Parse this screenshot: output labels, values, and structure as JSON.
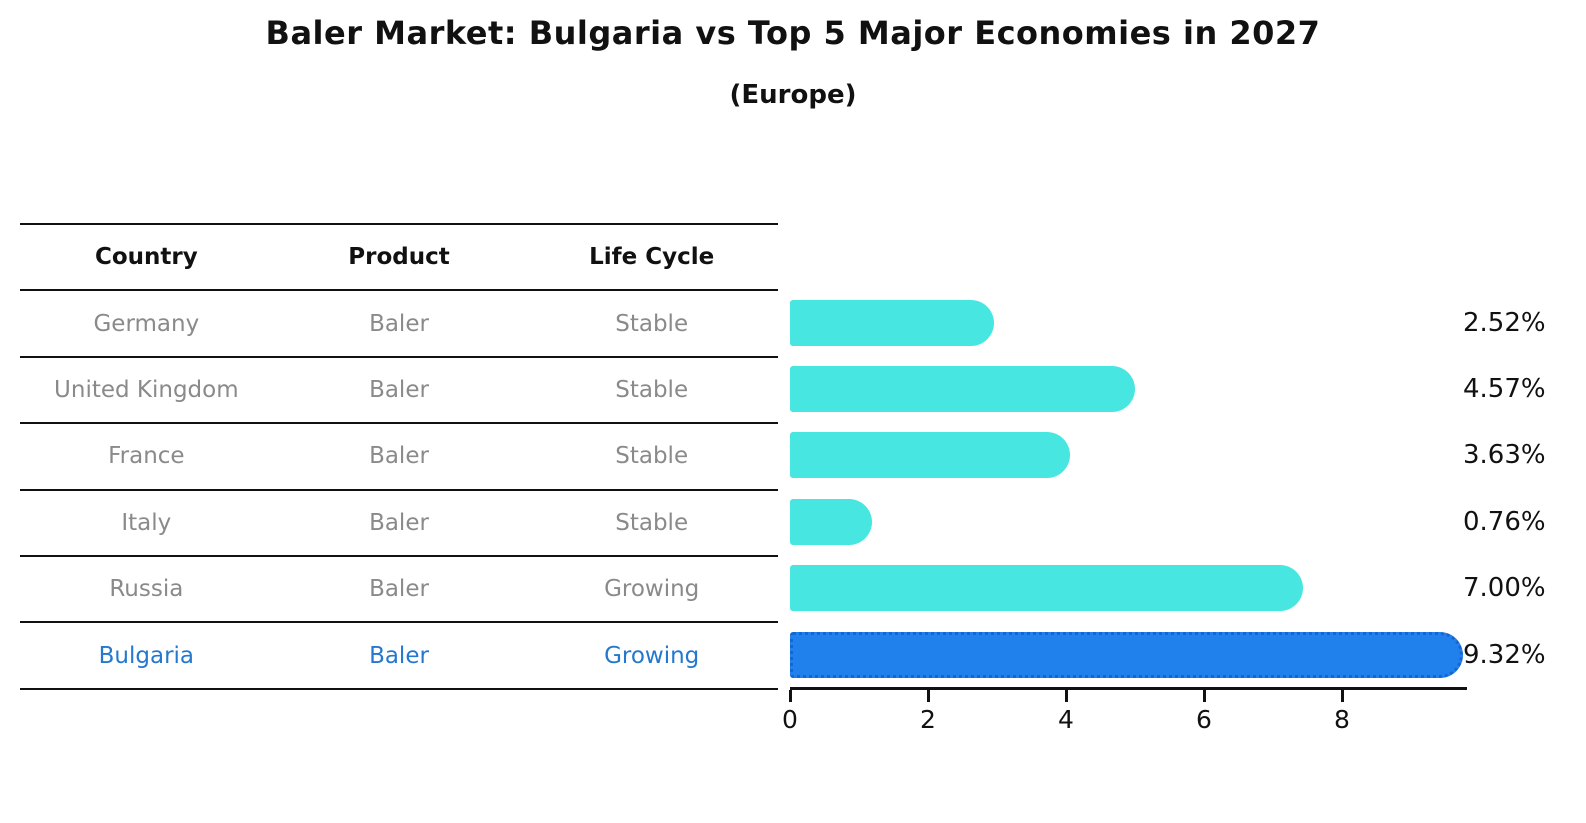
{
  "title": "Baler Market: Bulgaria vs Top 5 Major Economies in 2027",
  "subtitle": "(Europe)",
  "table": {
    "headers": [
      "Country",
      "Product",
      "Life Cycle"
    ],
    "rows": [
      {
        "country": "Germany",
        "product": "Baler",
        "life_cycle": "Stable",
        "highlighted": false
      },
      {
        "country": "United Kingdom",
        "product": "Baler",
        "life_cycle": "Stable",
        "highlighted": false
      },
      {
        "country": "France",
        "product": "Baler",
        "life_cycle": "Stable",
        "highlighted": false
      },
      {
        "country": "Italy",
        "product": "Baler",
        "life_cycle": "Stable",
        "highlighted": false
      },
      {
        "country": "Russia",
        "product": "Baler",
        "life_cycle": "Growing",
        "highlighted": false
      },
      {
        "country": "Bulgaria",
        "product": "Baler",
        "life_cycle": "Growing",
        "highlighted": true
      }
    ]
  },
  "chart_data": {
    "type": "bar",
    "orientation": "horizontal",
    "title": "Baler Market: Bulgaria vs Top 5 Major Economies in 2027",
    "subtitle": "(Europe)",
    "categories": [
      "Germany",
      "United Kingdom",
      "France",
      "Italy",
      "Russia",
      "Bulgaria"
    ],
    "values": [
      2.52,
      4.57,
      3.63,
      0.76,
      7.0,
      9.32
    ],
    "value_labels": [
      "2.52%",
      "4.57%",
      "3.63%",
      "0.76%",
      "7.00%",
      "9.32%"
    ],
    "xticks": [
      "0",
      "2",
      "4",
      "6",
      "8"
    ],
    "xlim": [
      0,
      9.8
    ],
    "grid": false,
    "legend": false,
    "bar_color": "#47E6E0",
    "highlight": {
      "index": 5,
      "category": "Bulgaria",
      "fill": "#2080EC",
      "border": "#1565D2",
      "border_style": "dotted"
    }
  },
  "colors": {
    "row_text": "#8a8a8a",
    "highlight_text": "#2478CF",
    "header_text": "#111111",
    "axis": "#111111"
  }
}
